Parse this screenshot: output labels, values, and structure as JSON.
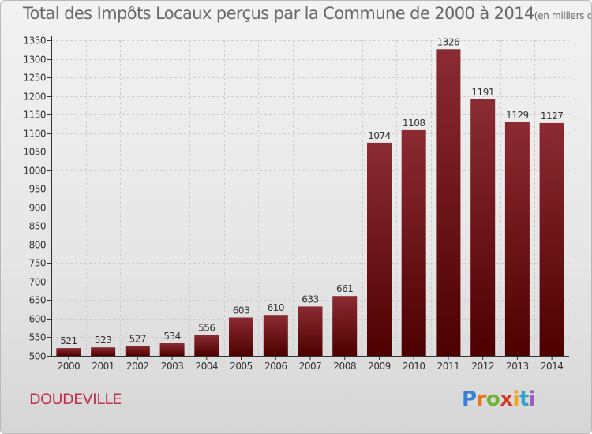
{
  "title": "Total des Impôts Locaux perçus par la Commune de 2000 à 2014",
  "unit": "(en milliers d'€)",
  "commune": "DOUDEVILLE",
  "logo": {
    "letters": [
      "P",
      "r",
      "o",
      "x",
      "i",
      "t",
      "i"
    ],
    "colors": [
      "#3a7fd0",
      "#e8741c",
      "#6fb33b",
      "#d93a2a",
      "#f0a51c",
      "#3a9fd0",
      "#9a5cc0"
    ]
  },
  "colors": {
    "bar_top": "#8b2b33",
    "bar_bottom": "#4d0000",
    "axis": "#333333",
    "grid": "#cccccc"
  },
  "chart_data": {
    "type": "bar",
    "categories": [
      "2000",
      "2001",
      "2002",
      "2003",
      "2004",
      "2005",
      "2006",
      "2007",
      "2008",
      "2009",
      "2010",
      "2011",
      "2012",
      "2013",
      "2014"
    ],
    "values": [
      521,
      523,
      527,
      534,
      556,
      603,
      610,
      633,
      661,
      1074,
      1108,
      1326,
      1191,
      1129,
      1127
    ],
    "ylim": [
      500,
      1350
    ],
    "yticks": [
      500,
      550,
      600,
      650,
      700,
      750,
      800,
      850,
      900,
      950,
      1000,
      1050,
      1100,
      1150,
      1200,
      1250,
      1300,
      1350
    ],
    "grid": "horizontal dashed"
  }
}
